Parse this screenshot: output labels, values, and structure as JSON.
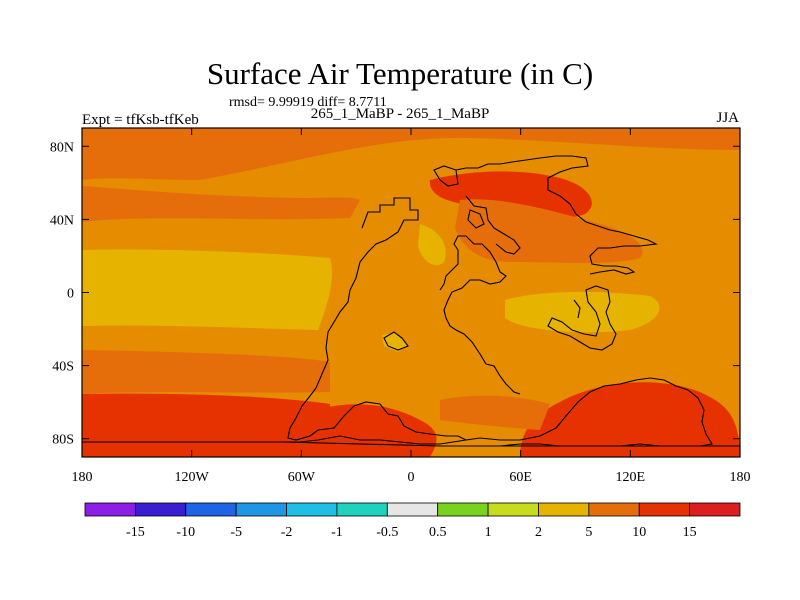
{
  "chart_data": {
    "type": "heatmap",
    "title": "Surface Air Temperature (in C)",
    "stats_line": "rmsd= 9.99919 diff= 8.7711",
    "experiment_label": "Expt = tfKsb-tfKeb",
    "subtitle": "265_1_MaBP - 265_1_MaBP",
    "season": "JJA",
    "x_range": [
      -180,
      180
    ],
    "y_range": [
      -90,
      90
    ],
    "x_ticks": [
      {
        "value": -180,
        "label": "180"
      },
      {
        "value": -120,
        "label": "120W"
      },
      {
        "value": -60,
        "label": "60W"
      },
      {
        "value": 0,
        "label": "0"
      },
      {
        "value": 60,
        "label": "60E"
      },
      {
        "value": 120,
        "label": "120E"
      },
      {
        "value": 180,
        "label": "180"
      }
    ],
    "y_ticks": [
      {
        "value": 80,
        "label": "80N"
      },
      {
        "value": 40,
        "label": "40N"
      },
      {
        "value": 0,
        "label": "0"
      },
      {
        "value": -40,
        "label": "40S"
      },
      {
        "value": -80,
        "label": "80S"
      }
    ],
    "colorbar": {
      "levels": [
        "-15",
        "-10",
        "-5",
        "-2",
        "-1",
        "-0.5",
        "0.5",
        "1",
        "2",
        "5",
        "10",
        "15"
      ],
      "colors": [
        "#8c1ee6",
        "#3c1ed2",
        "#1e64e6",
        "#1e96e6",
        "#1ebee6",
        "#1ed2be",
        "#e6e6e6",
        "#78d21e",
        "#c8dc1e",
        "#e6b400",
        "#e66e0a",
        "#e63200",
        "#dc1e1e"
      ]
    },
    "field_colors": {
      "base": "#e68c00",
      "band_cool": "#e6b400",
      "band_warm": "#e66e0a",
      "hot": "#e63200"
    }
  }
}
